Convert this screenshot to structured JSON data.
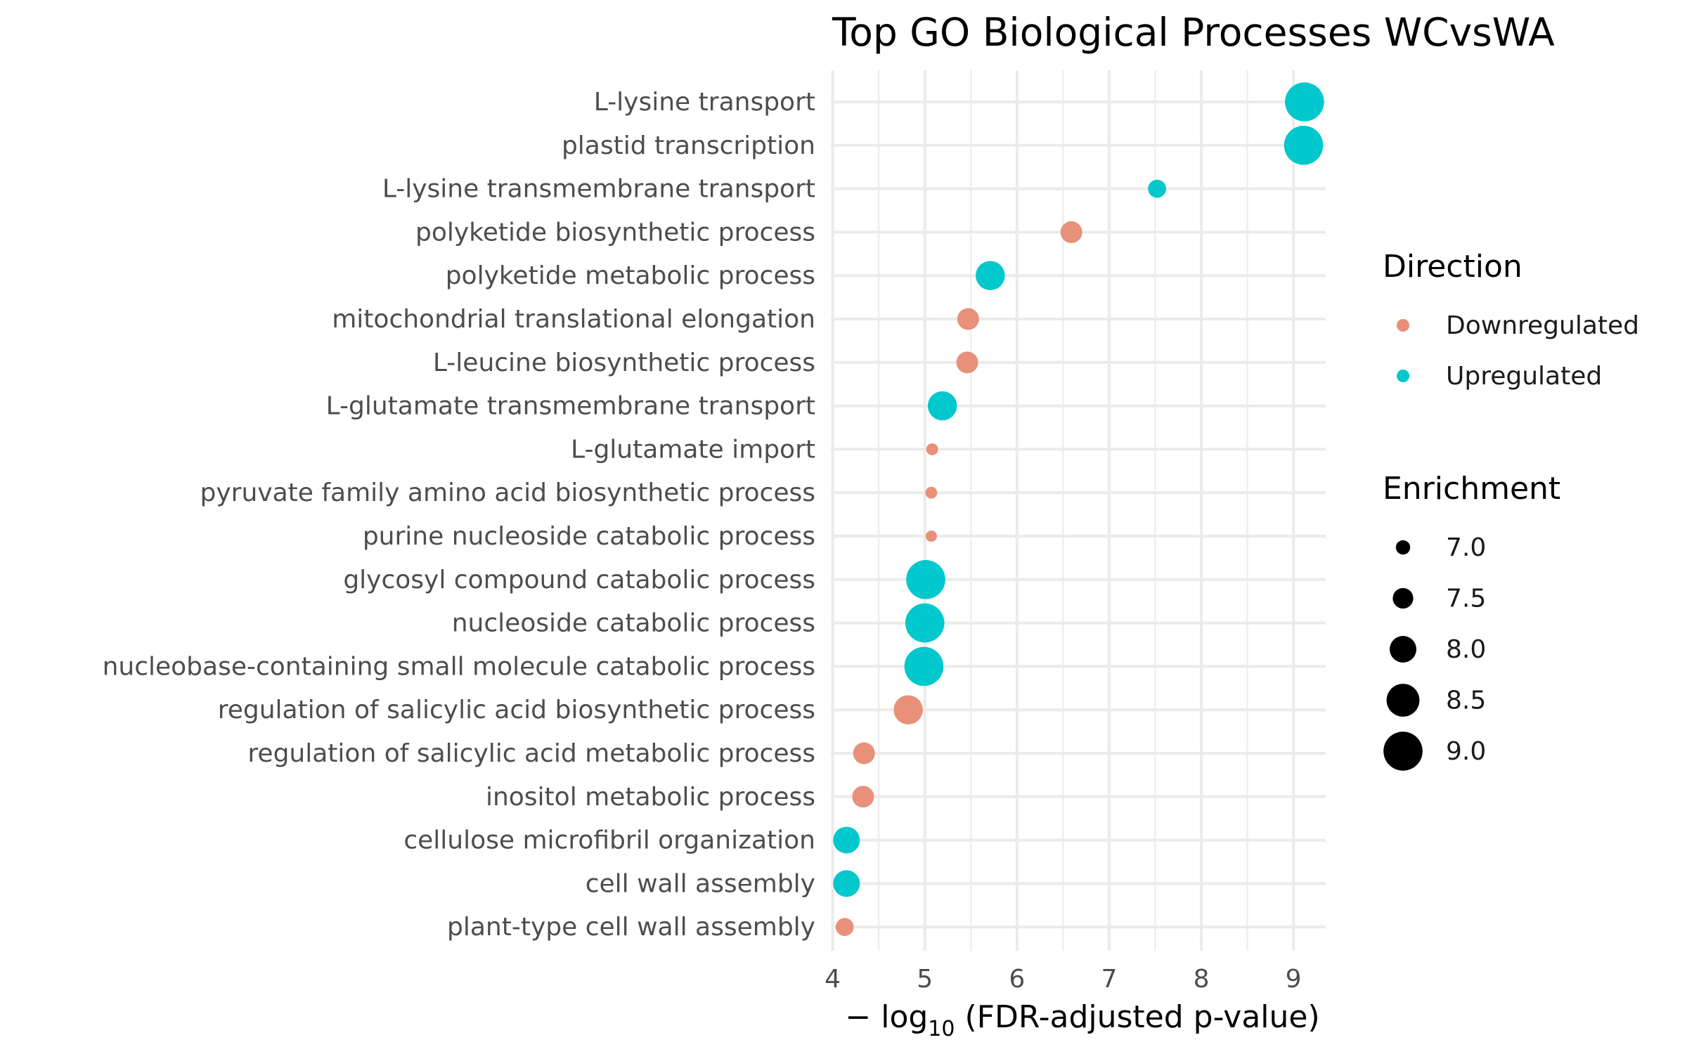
{
  "chart_data": {
    "type": "scatter",
    "title": "Top GO Biological Processes WCvsWA",
    "xlabel": "",
    "xlabel_parts": {
      "prefix": "− log",
      "subscript": "10",
      "suffix": " (FDR-adjusted p-value)"
    },
    "ylabel": "",
    "xlim": [
      3.98,
      9.35
    ],
    "x_ticks": [
      4,
      5,
      6,
      7,
      8,
      9
    ],
    "x_tick_labels": [
      "4",
      "5",
      "6",
      "7",
      "8",
      "9"
    ],
    "grid": true,
    "legend_placement": "right",
    "colors": {
      "Downregulated": "#E8907A",
      "Upregulated": "#00C8CC"
    },
    "categories": [
      "L-lysine transport",
      "plastid transcription",
      "L-lysine transmembrane transport",
      "polyketide biosynthetic process",
      "polyketide metabolic process",
      "mitochondrial translational elongation",
      "L-leucine biosynthetic process",
      "L-glutamate transmembrane transport",
      "L-glutamate import",
      "pyruvate family amino acid biosynthetic process",
      "purine nucleoside catabolic process",
      "glycosyl compound catabolic process",
      "nucleoside catabolic process",
      "nucleobase-containing small molecule catabolic process",
      "regulation of salicylic acid biosynthetic process",
      "regulation of salicylic acid metabolic process",
      "inositol metabolic process",
      "cellulose microfibril organization",
      "cell wall assembly",
      "plant-type cell wall assembly"
    ],
    "points": [
      {
        "term": "L-lysine transport",
        "x": 9.12,
        "enrichment": 9.0,
        "direction": "Upregulated"
      },
      {
        "term": "plastid transcription",
        "x": 9.11,
        "enrichment": 9.0,
        "direction": "Upregulated"
      },
      {
        "term": "L-lysine transmembrane transport",
        "x": 7.52,
        "enrichment": 7.3,
        "direction": "Upregulated"
      },
      {
        "term": "polyketide biosynthetic process",
        "x": 6.59,
        "enrichment": 7.6,
        "direction": "Downregulated"
      },
      {
        "term": "polyketide metabolic process",
        "x": 5.71,
        "enrichment": 8.2,
        "direction": "Upregulated"
      },
      {
        "term": "mitochondrial translational elongation",
        "x": 5.47,
        "enrichment": 7.6,
        "direction": "Downregulated"
      },
      {
        "term": "L-leucine biosynthetic process",
        "x": 5.46,
        "enrichment": 7.6,
        "direction": "Downregulated"
      },
      {
        "term": "L-glutamate transmembrane transport",
        "x": 5.19,
        "enrichment": 8.2,
        "direction": "Upregulated"
      },
      {
        "term": "L-glutamate import",
        "x": 5.08,
        "enrichment": 6.8,
        "direction": "Downregulated"
      },
      {
        "term": "pyruvate family amino acid biosynthetic process",
        "x": 5.07,
        "enrichment": 6.8,
        "direction": "Downregulated"
      },
      {
        "term": "purine nucleoside catabolic process",
        "x": 5.07,
        "enrichment": 6.75,
        "direction": "Downregulated"
      },
      {
        "term": "glycosyl compound catabolic process",
        "x": 5.01,
        "enrichment": 9.0,
        "direction": "Upregulated"
      },
      {
        "term": "nucleoside catabolic process",
        "x": 5.0,
        "enrichment": 9.0,
        "direction": "Upregulated"
      },
      {
        "term": "nucleobase-containing small molecule catabolic process",
        "x": 4.99,
        "enrichment": 9.0,
        "direction": "Upregulated"
      },
      {
        "term": "regulation of salicylic acid biosynthetic process",
        "x": 4.82,
        "enrichment": 8.2,
        "direction": "Downregulated"
      },
      {
        "term": "regulation of salicylic acid metabolic process",
        "x": 4.34,
        "enrichment": 7.6,
        "direction": "Downregulated"
      },
      {
        "term": "inositol metabolic process",
        "x": 4.33,
        "enrichment": 7.6,
        "direction": "Downregulated"
      },
      {
        "term": "cellulose microfibril organization",
        "x": 4.15,
        "enrichment": 8.0,
        "direction": "Upregulated"
      },
      {
        "term": "cell wall assembly",
        "x": 4.15,
        "enrichment": 8.0,
        "direction": "Upregulated"
      },
      {
        "term": "plant-type cell wall assembly",
        "x": 4.13,
        "enrichment": 7.3,
        "direction": "Downregulated"
      }
    ],
    "legend": {
      "direction_title": "Direction",
      "direction_items": [
        "Downregulated",
        "Upregulated"
      ],
      "size_title": "Enrichment",
      "size_values": [
        7.0,
        7.5,
        8.0,
        8.5,
        9.0
      ],
      "size_labels": [
        "7.0",
        "7.5",
        "8.0",
        "8.5",
        "9.0"
      ]
    }
  }
}
